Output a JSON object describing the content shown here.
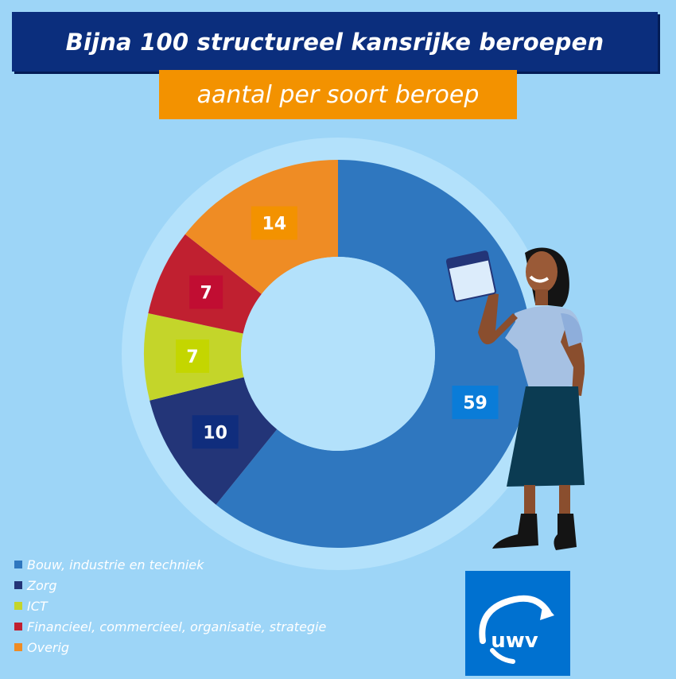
{
  "title": "Bijna 100 structureel kansrijke beroepen",
  "subtitle": "aantal per soort beroep",
  "logo_text": "uwv",
  "colors": {
    "background": "#9dd5f7",
    "ring": "#b3e1fb",
    "title_bg": "#0b2e7d",
    "subtitle_bg": "#f39200",
    "logo_bg": "#0071d0"
  },
  "chart_data": {
    "type": "pie",
    "donut": true,
    "categories": [
      "Bouw, industrie en techniek",
      "Zorg",
      "ICT",
      "Financieel, commercieel, organisatie, strategie",
      "Overig"
    ],
    "values": [
      59,
      10,
      7,
      7,
      14
    ],
    "labels": [
      "59",
      "10",
      "7",
      "7",
      "14"
    ],
    "colors": [
      "#2f77bf",
      "#233578",
      "#c4d52a",
      "#c02030",
      "#ef8c24"
    ],
    "label_bg_colors": [
      "#0a7cd8",
      "#102d7d",
      "#c4d600",
      "#c10d32",
      "#f39200"
    ],
    "legend_placement": "bottom-left"
  }
}
